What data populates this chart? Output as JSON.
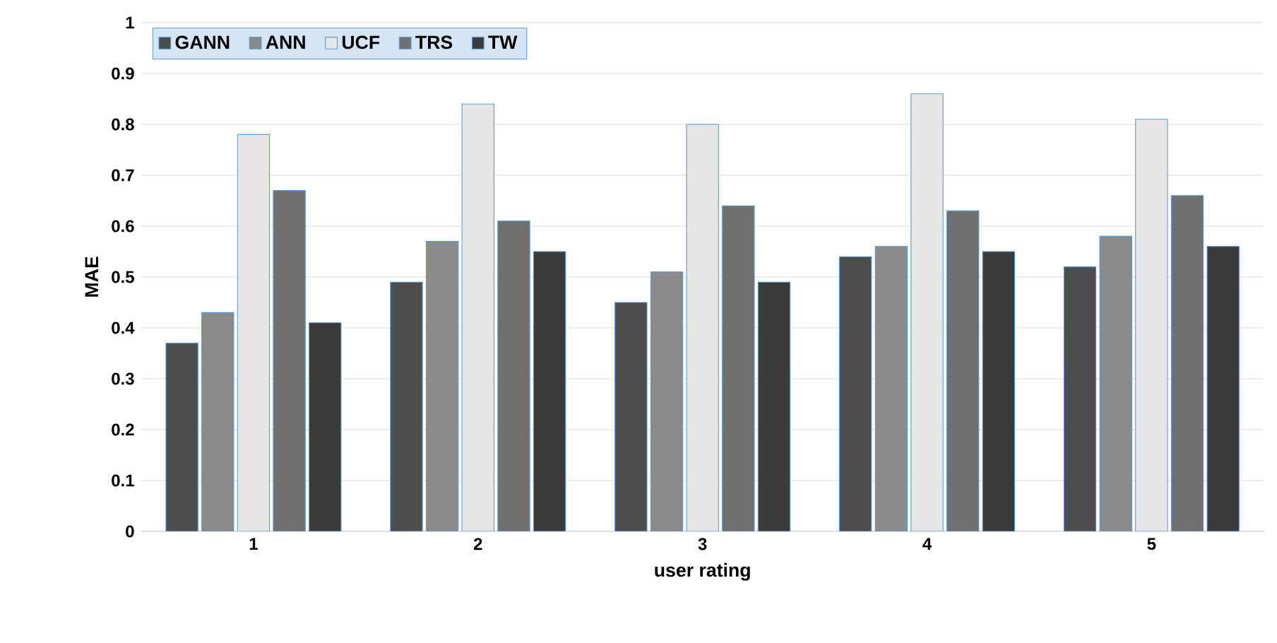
{
  "chart_data": {
    "type": "bar",
    "xlabel": "user rating",
    "ylabel": "MAE",
    "categories": [
      "1",
      "2",
      "3",
      "4",
      "5"
    ],
    "series": [
      {
        "name": "GANN",
        "color": "#4d4d4d",
        "values": [
          0.37,
          0.49,
          0.45,
          0.54,
          0.52
        ]
      },
      {
        "name": "ANN",
        "color": "#8a8a8a",
        "values": [
          0.43,
          0.57,
          0.51,
          0.56,
          0.58
        ]
      },
      {
        "name": "UCF",
        "color": "#e6e6e6",
        "values": [
          0.78,
          0.84,
          0.8,
          0.86,
          0.81
        ]
      },
      {
        "name": "TRS",
        "color": "#707070",
        "values": [
          0.67,
          0.61,
          0.64,
          0.63,
          0.66
        ]
      },
      {
        "name": "TW",
        "color": "#3a3a3a",
        "values": [
          0.41,
          0.55,
          0.49,
          0.55,
          0.56
        ]
      }
    ],
    "ylim": [
      0,
      1
    ],
    "yticks": [
      0,
      0.1,
      0.2,
      0.3,
      0.4,
      0.5,
      0.6,
      0.7,
      0.8,
      0.9,
      1
    ],
    "grid": "y",
    "legend": "top left"
  }
}
